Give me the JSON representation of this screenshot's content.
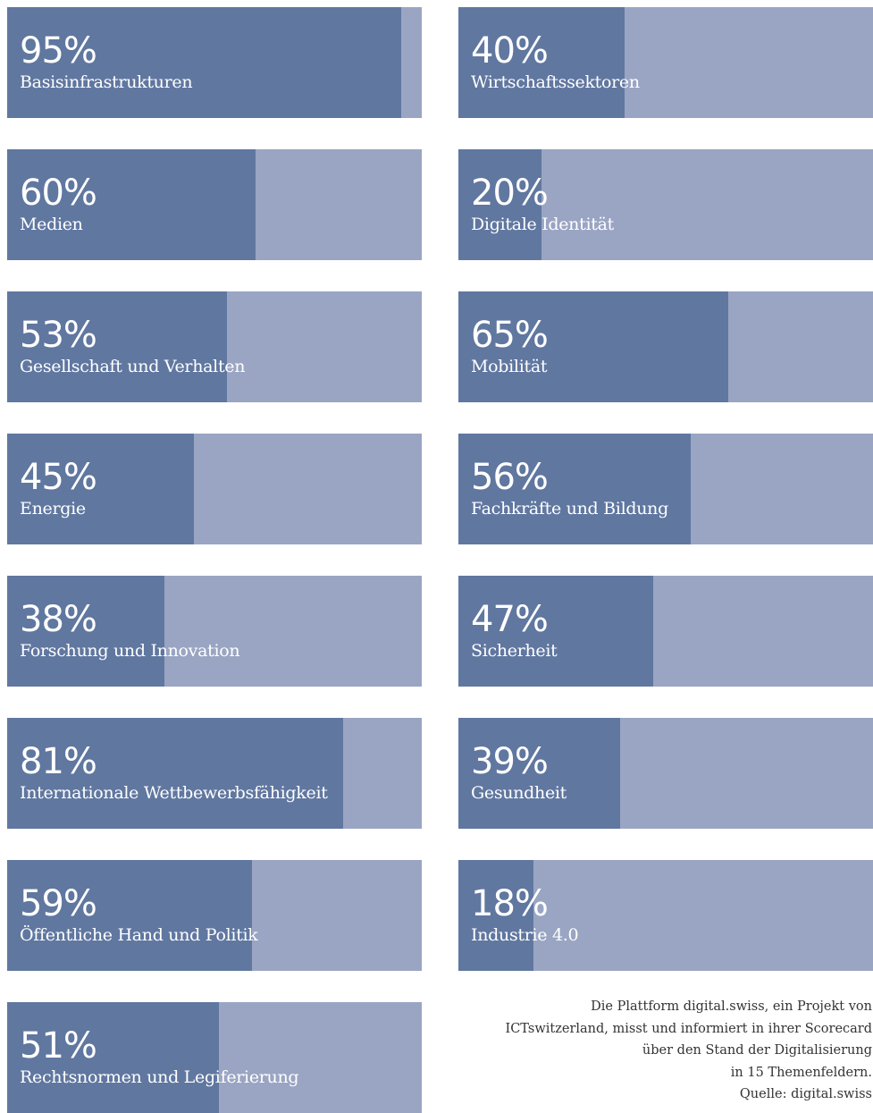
{
  "colors": {
    "fill": "#6077a0",
    "remainder": "#9aa5c3"
  },
  "chart_data": {
    "type": "bar",
    "unit": "%",
    "xlim": [
      0,
      100
    ],
    "items": [
      {
        "label": "Basisinfrastrukturen",
        "value": 95,
        "value_label": "95%"
      },
      {
        "label": "Wirtschaftssektoren",
        "value": 40,
        "value_label": "40%"
      },
      {
        "label": "Medien",
        "value": 60,
        "value_label": "60%"
      },
      {
        "label": "Digitale Identität",
        "value": 20,
        "value_label": "20%"
      },
      {
        "label": "Gesellschaft und Verhalten",
        "value": 53,
        "value_label": "53%"
      },
      {
        "label": "Mobilität",
        "value": 65,
        "value_label": "65%"
      },
      {
        "label": "Energie",
        "value": 45,
        "value_label": "45%"
      },
      {
        "label": "Fachkräfte und Bildung",
        "value": 56,
        "value_label": "56%"
      },
      {
        "label": "Forschung und Innovation",
        "value": 38,
        "value_label": "38%"
      },
      {
        "label": "Sicherheit",
        "value": 47,
        "value_label": "47%"
      },
      {
        "label": "Internationale Wettbewerbsfähigkeit",
        "value": 81,
        "value_label": "81%"
      },
      {
        "label": "Gesundheit",
        "value": 39,
        "value_label": "39%"
      },
      {
        "label": "Öffentliche Hand und Politik",
        "value": 59,
        "value_label": "59%"
      },
      {
        "label": "Industrie 4.0",
        "value": 18,
        "value_label": "18%"
      },
      {
        "label": "Rechtsnormen und Legiferierung",
        "value": 51,
        "value_label": "51%"
      }
    ]
  },
  "note": {
    "lines": [
      "Die Plattform digital.swiss, ein Projekt von",
      "ICTswitzerland, misst und informiert in ihrer Scorecard",
      "über den Stand der Digitalisierung",
      "in 15 Themenfeldern.",
      "Quelle: digital.swiss"
    ]
  }
}
